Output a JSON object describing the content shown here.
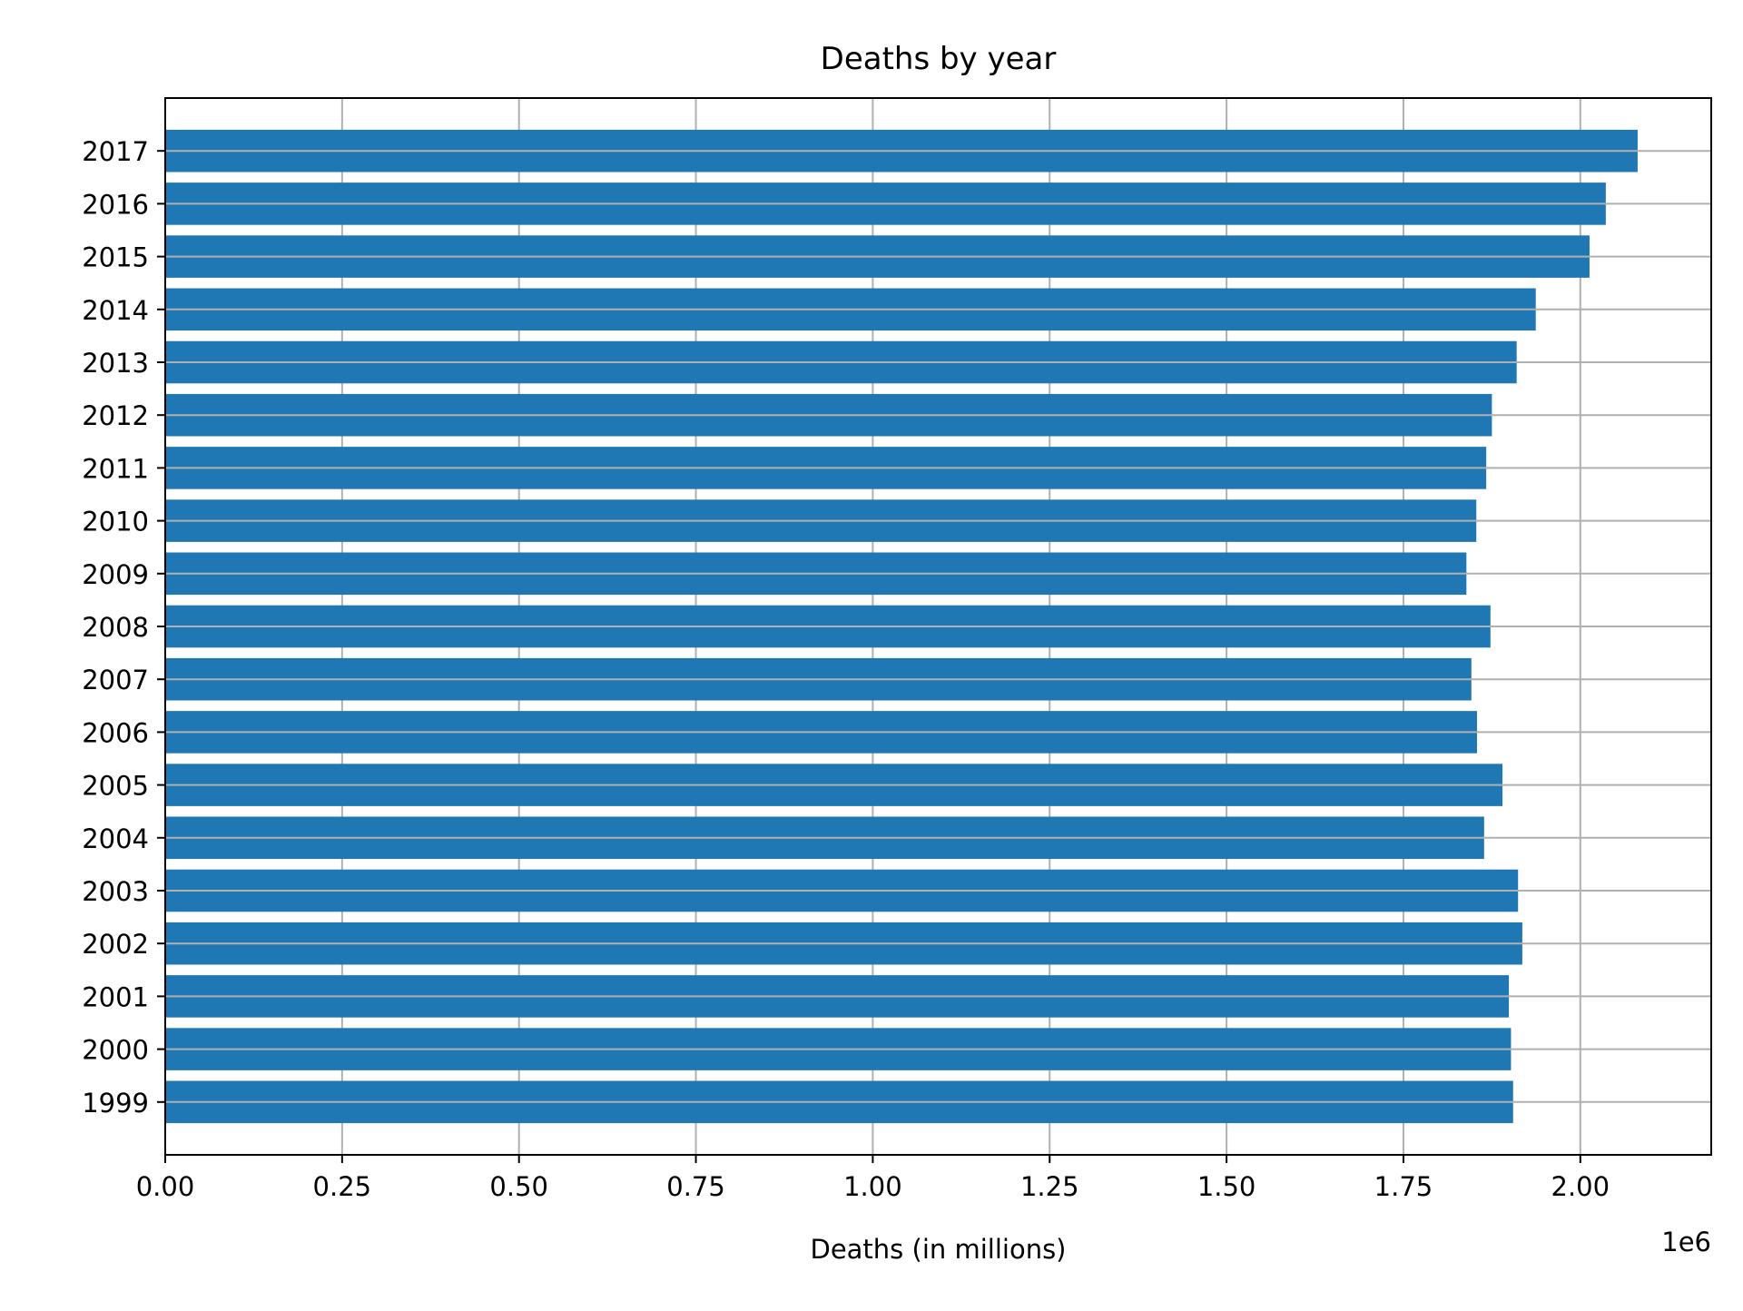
{
  "chart_data": {
    "type": "bar",
    "orientation": "horizontal",
    "title": "Deaths by year",
    "xlabel": "Deaths (in millions)",
    "ylabel": "",
    "x_offset_label": "1e6",
    "xlim": [
      0,
      2185000
    ],
    "x_ticks": [
      0,
      250000,
      500000,
      750000,
      1000000,
      1250000,
      1500000,
      1750000,
      2000000
    ],
    "x_tick_labels": [
      "0.00",
      "0.25",
      "0.50",
      "0.75",
      "1.00",
      "1.25",
      "1.50",
      "1.75",
      "2.00"
    ],
    "grid": true,
    "categories": [
      "1999",
      "2000",
      "2001",
      "2002",
      "2003",
      "2004",
      "2005",
      "2006",
      "2007",
      "2008",
      "2009",
      "2010",
      "2011",
      "2012",
      "2013",
      "2014",
      "2015",
      "2016",
      "2017"
    ],
    "values": [
      1905000,
      1902000,
      1899000,
      1918000,
      1912000,
      1864000,
      1890000,
      1854000,
      1846000,
      1873000,
      1839000,
      1853000,
      1867000,
      1875000,
      1910000,
      1937000,
      2013000,
      2036000,
      2081000
    ],
    "bar_color": "#1f77b4",
    "grid_color": "#b0b0b0"
  }
}
